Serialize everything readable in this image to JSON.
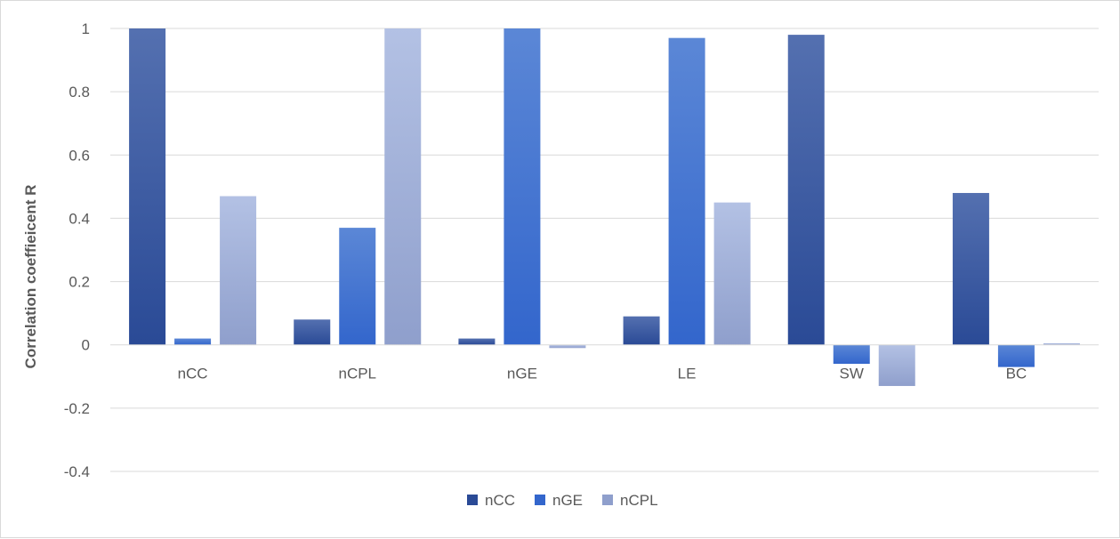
{
  "chart_data": {
    "type": "bar",
    "title": "",
    "xlabel": "",
    "ylabel": "Correlation coeffieicent R",
    "categories": [
      "nCC",
      "nCPL",
      "nGE",
      "LE",
      "SW",
      "BC"
    ],
    "series": [
      {
        "name": "nCC",
        "values": [
          1.0,
          0.08,
          0.02,
          0.09,
          0.98,
          0.48
        ],
        "color_top": "#5470b0",
        "color_bottom": "#2a4a96"
      },
      {
        "name": "nGE",
        "values": [
          0.02,
          0.37,
          1.0,
          0.97,
          -0.06,
          -0.07
        ],
        "color_top": "#5b87d6",
        "color_bottom": "#3366cc"
      },
      {
        "name": "nCPL",
        "values": [
          0.47,
          1.0,
          -0.01,
          0.45,
          -0.13,
          0.005
        ],
        "color_top": "#b3c1e4",
        "color_bottom": "#8f9fcc"
      }
    ],
    "ylim": [
      -0.4,
      1.0
    ],
    "yticks": [
      "1",
      "0.8",
      "0.6",
      "0.4",
      "0.2",
      "0",
      "-0.2",
      "-0.4"
    ],
    "ytick_values": [
      1.0,
      0.8,
      0.6,
      0.4,
      0.2,
      0.0,
      -0.2,
      -0.4
    ],
    "grid": true,
    "legend_position": "bottom"
  }
}
